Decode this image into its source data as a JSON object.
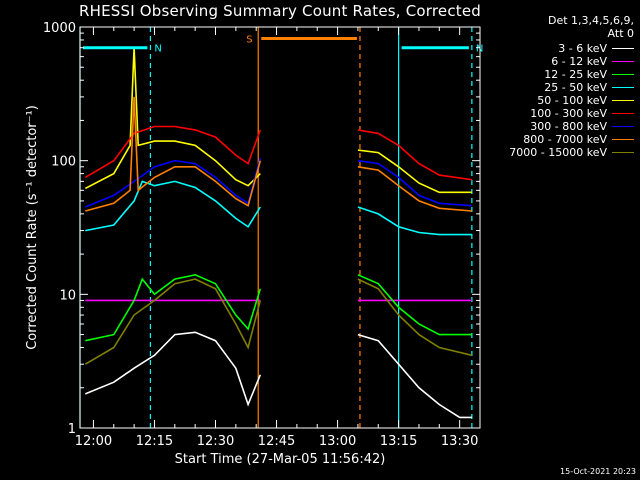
{
  "chart_data": {
    "type": "line",
    "title": "RHESSI Observing Summary Count Rates, Corrected",
    "xlabel": "Start Time (27-Mar-05 11:56:42)",
    "ylabel": "Corrected Count Rate (s⁻¹ detector⁻¹)",
    "y_scale": "log",
    "ylim": [
      1,
      1000
    ],
    "xlim": [
      "11:56:42",
      "13:35:00"
    ],
    "y_ticks": [
      "1",
      "10",
      "100",
      "1000"
    ],
    "x_ticks": [
      "12:00",
      "12:15",
      "12:30",
      "12:45",
      "13:00",
      "13:15",
      "13:30"
    ],
    "detector_info": [
      "Det 1,3,4,5,6,9,",
      "Att 0"
    ],
    "legend_placement": "right",
    "data_gap": [
      "12:40:30",
      "13:05:30"
    ],
    "series": [
      {
        "name": "3 - 6 keV",
        "color": "#ffffff",
        "x": [
          "11:58",
          "12:05",
          "12:10",
          "12:15",
          "12:20",
          "12:25",
          "12:30",
          "12:35",
          "12:38",
          "12:41",
          "13:05",
          "13:10",
          "13:15",
          "13:20",
          "13:25",
          "13:30",
          "13:33"
        ],
        "values": [
          1.8,
          2.2,
          2.8,
          3.5,
          5.0,
          5.2,
          4.5,
          2.8,
          1.5,
          2.5,
          5.0,
          4.5,
          3.0,
          2.0,
          1.5,
          1.2,
          1.2
        ]
      },
      {
        "name": "6 - 12 keV",
        "color": "#ff00ff",
        "x": [
          "11:58",
          "12:10",
          "12:20",
          "12:30",
          "12:40",
          "12:41",
          "13:05",
          "13:15",
          "13:25",
          "13:33"
        ],
        "values": [
          9,
          9,
          9,
          9,
          9,
          9,
          9,
          9,
          9,
          9
        ]
      },
      {
        "name": "12 - 25 keV",
        "color": "#00ff00",
        "x": [
          "11:58",
          "12:05",
          "12:10",
          "12:12",
          "12:15",
          "12:20",
          "12:25",
          "12:30",
          "12:35",
          "12:38",
          "12:41",
          "13:05",
          "13:10",
          "13:15",
          "13:20",
          "13:25",
          "13:33"
        ],
        "values": [
          4.5,
          5.0,
          9,
          13,
          10,
          13,
          14,
          12,
          7,
          5.5,
          11,
          14,
          12,
          8,
          6,
          5,
          5
        ]
      },
      {
        "name": "25 - 50 keV",
        "color": "#00ffff",
        "x": [
          "11:58",
          "12:05",
          "12:10",
          "12:12",
          "12:15",
          "12:20",
          "12:25",
          "12:30",
          "12:35",
          "12:38",
          "12:41",
          "13:05",
          "13:10",
          "13:15",
          "13:20",
          "13:25",
          "13:33"
        ],
        "values": [
          30,
          33,
          50,
          70,
          65,
          70,
          63,
          50,
          37,
          32,
          45,
          45,
          40,
          32,
          29,
          28,
          28
        ]
      },
      {
        "name": "50 - 100 keV",
        "color": "#ffff00",
        "x": [
          "11:58",
          "12:05",
          "12:09",
          "12:10",
          "12:11",
          "12:15",
          "12:20",
          "12:25",
          "12:30",
          "12:35",
          "12:38",
          "12:41",
          "13:05",
          "13:10",
          "13:15",
          "13:20",
          "13:25",
          "13:33"
        ],
        "values": [
          62,
          80,
          130,
          700,
          130,
          140,
          140,
          130,
          100,
          72,
          65,
          80,
          120,
          115,
          90,
          68,
          58,
          58
        ]
      },
      {
        "name": "100 - 300 keV",
        "color": "#ff0000",
        "x": [
          "11:58",
          "12:05",
          "12:10",
          "12:15",
          "12:20",
          "12:25",
          "12:30",
          "12:35",
          "12:38",
          "12:41",
          "13:05",
          "13:10",
          "13:15",
          "13:20",
          "13:25",
          "13:33"
        ],
        "values": [
          75,
          100,
          160,
          180,
          180,
          170,
          150,
          110,
          95,
          170,
          170,
          160,
          130,
          95,
          78,
          72
        ]
      },
      {
        "name": "300 - 800 keV",
        "color": "#0000ff",
        "x": [
          "11:58",
          "12:05",
          "12:10",
          "12:15",
          "12:20",
          "12:25",
          "12:30",
          "12:35",
          "12:38",
          "12:41",
          "13:05",
          "13:10",
          "13:15",
          "13:20",
          "13:25",
          "13:33"
        ],
        "values": [
          45,
          55,
          70,
          90,
          100,
          95,
          75,
          55,
          48,
          105,
          100,
          95,
          75,
          55,
          48,
          46
        ]
      },
      {
        "name": "800 - 7000 keV",
        "color": "#ff8000",
        "x": [
          "11:58",
          "12:05",
          "12:09",
          "12:10",
          "12:11",
          "12:15",
          "12:20",
          "12:25",
          "12:30",
          "12:35",
          "12:38",
          "12:41",
          "13:05",
          "13:10",
          "13:15",
          "13:20",
          "13:25",
          "13:33"
        ],
        "values": [
          42,
          48,
          60,
          300,
          60,
          75,
          90,
          90,
          70,
          52,
          46,
          100,
          90,
          85,
          65,
          50,
          44,
          42
        ]
      },
      {
        "name": "7000 - 15000 keV",
        "color": "#808000",
        "x": [
          "11:58",
          "12:05",
          "12:10",
          "12:15",
          "12:20",
          "12:25",
          "12:30",
          "12:35",
          "12:38",
          "12:41",
          "13:05",
          "13:10",
          "13:15",
          "13:20",
          "13:25",
          "13:33"
        ],
        "values": [
          3.0,
          4.0,
          7,
          9,
          12,
          13,
          11,
          6,
          4,
          9,
          13,
          11,
          7,
          5,
          4,
          3.5
        ]
      }
    ],
    "markers": [
      {
        "label": "N",
        "color": "#00ffff",
        "start": "11:56:42",
        "end": "12:14:00",
        "level": 700
      },
      {
        "label": "N",
        "color": "#00ffff",
        "start": "13:15:00",
        "end": "13:33:00",
        "level": 700
      },
      {
        "label": "S",
        "color": "#ff8000",
        "start": "12:40:30",
        "end": "13:05:30",
        "level": 820
      }
    ],
    "vlines": [
      {
        "time": "11:56:42",
        "color": "#00ffff",
        "style": "solid"
      },
      {
        "time": "12:14:00",
        "color": "#00ffff",
        "style": "dash"
      },
      {
        "time": "12:40:30",
        "color": "#ff8000",
        "style": "solid"
      },
      {
        "time": "13:05:30",
        "color": "#ff8000",
        "style": "dash"
      },
      {
        "time": "13:15:00",
        "color": "#00ffff",
        "style": "solid"
      },
      {
        "time": "13:33:00",
        "color": "#00ffff",
        "style": "dash"
      }
    ]
  },
  "timestamp": "15-Oct-2021 20:23"
}
